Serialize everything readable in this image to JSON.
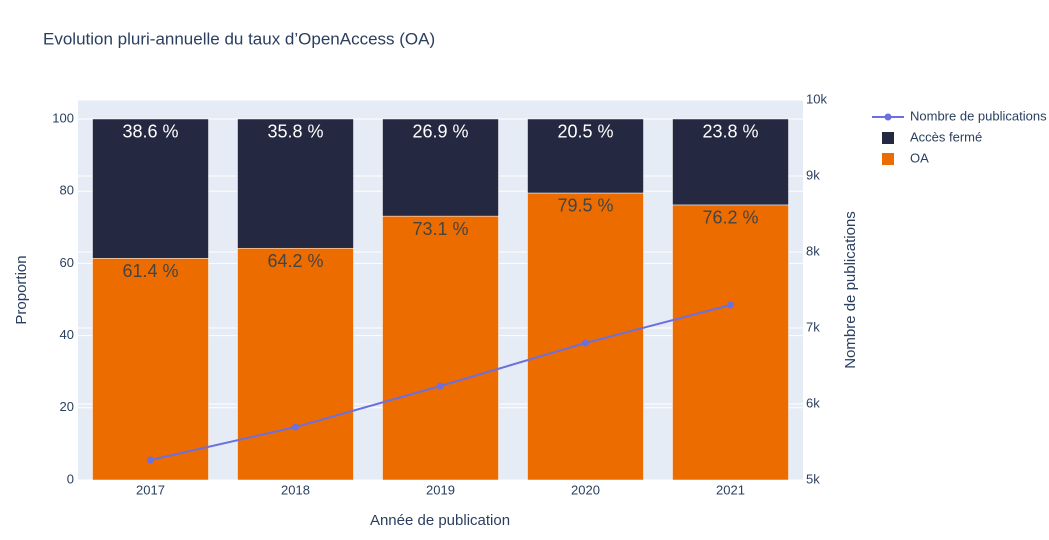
{
  "chart_data": {
    "type": "bar",
    "title": "Evolution pluri-annuelle du taux d’OpenAccess (OA)",
    "xlabel": "Année de publication",
    "ylabel": "Proportion",
    "y2label": "Nombre de publications",
    "categories": [
      "2017",
      "2018",
      "2019",
      "2020",
      "2021"
    ],
    "stacked": true,
    "grid": true,
    "legend": "top-right",
    "series": [
      {
        "name": "OA",
        "color": "#ed6c00",
        "values": [
          61.4,
          64.2,
          73.1,
          79.5,
          76.2
        ],
        "value_labels": [
          "61.4 %",
          "64.2 %",
          "73.1 %",
          "79.5 %",
          "76.2 %"
        ]
      },
      {
        "name": "Accès fermé",
        "color": "#242840",
        "values": [
          38.6,
          35.8,
          26.9,
          20.5,
          23.8
        ],
        "value_labels": [
          "38.6 %",
          "35.8 %",
          "26.9 %",
          "20.5 %",
          "23.8 %"
        ]
      },
      {
        "name": "Nombre de publications",
        "type": "line",
        "axis": "y2",
        "color": "#6b6fe0",
        "values": [
          5263,
          5697,
          6237,
          6803,
          7303
        ]
      }
    ],
    "ylim": [
      0,
      105.26
    ],
    "yticks": [
      0,
      20,
      40,
      60,
      80,
      100
    ],
    "y2lim": [
      5000,
      10000
    ],
    "y2ticks": [
      {
        "value": 5000,
        "label": "5k"
      },
      {
        "value": 6000,
        "label": "6k"
      },
      {
        "value": 7000,
        "label": "7k"
      },
      {
        "value": 8000,
        "label": "8k"
      },
      {
        "value": 9000,
        "label": "9k"
      },
      {
        "value": 10000,
        "label": "10k"
      }
    ]
  }
}
